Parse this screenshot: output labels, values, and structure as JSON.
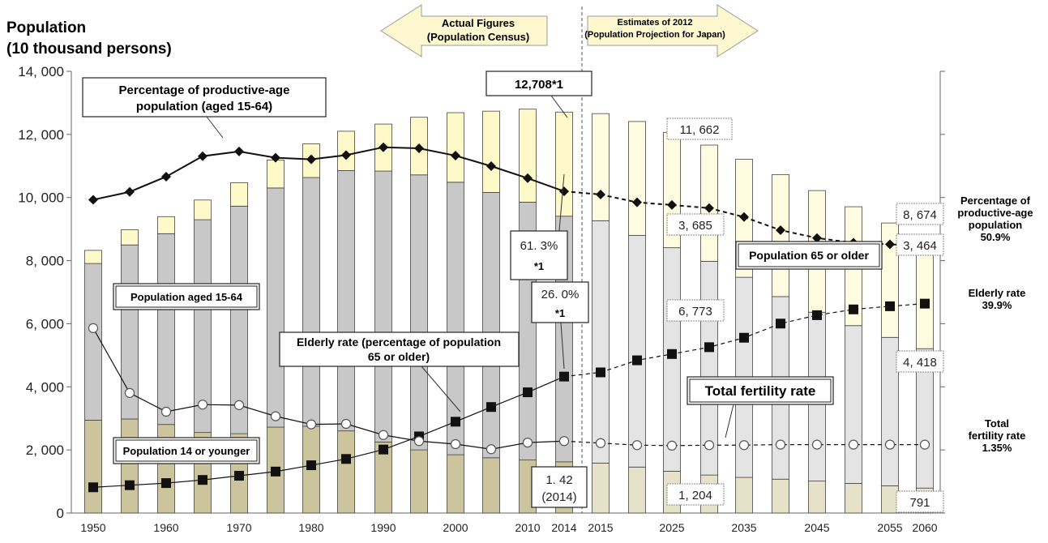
{
  "title_line1": "Population",
  "title_line2": "(10 thousand persons)",
  "chart_data": {
    "type": "bar",
    "stacked": true,
    "categories": [
      "1950",
      "1955",
      "1960",
      "1965",
      "1970",
      "1975",
      "1980",
      "1985",
      "1990",
      "1995",
      "2000",
      "2005",
      "2010",
      "2014",
      "2015",
      "2020",
      "2025",
      "2030",
      "2035",
      "2040",
      "2045",
      "2050",
      "2055",
      "2060"
    ],
    "x_tick_labels": [
      "1950",
      "",
      "1960",
      "",
      "1970",
      "",
      "1980",
      "",
      "1990",
      "",
      "2000",
      "",
      "2010",
      "2014",
      "2015",
      "",
      "2025",
      "",
      "2035",
      "",
      "2045",
      "",
      "2055",
      "2060"
    ],
    "y_tick_labels": [
      "0",
      "2, 000",
      "4, 000",
      "6, 000",
      "8, 000",
      "10, 000",
      "12, 000",
      "14, 000"
    ],
    "ylim": [
      0,
      14000
    ],
    "series": [
      {
        "name": "Population 14 or younger",
        "color_actual": "#ccc49c",
        "color_estimate": "#e6e2ca",
        "values": [
          2943,
          2980,
          2807,
          2553,
          2515,
          2722,
          2751,
          2603,
          2249,
          2001,
          1847,
          1752,
          1680,
          1623,
          1583,
          1457,
          1324,
          1204,
          1129,
          1073,
          1012,
          939,
          861,
          791
        ]
      },
      {
        "name": "Population aged 15-64",
        "color_actual": "#c8c8c8",
        "color_estimate": "#e4e4e4",
        "values": [
          4966,
          5517,
          6047,
          6744,
          7212,
          7581,
          7883,
          8251,
          8590,
          8717,
          8638,
          8409,
          8173,
          7785,
          7682,
          7341,
          7085,
          6773,
          6343,
          5787,
          5353,
          5001,
          4706,
          4418
        ]
      },
      {
        "name": "Population 65 or older",
        "color_actual": "#fff8c8",
        "color_estimate": "#fffbe0",
        "values": [
          416,
          479,
          540,
          624,
          739,
          887,
          1065,
          1247,
          1489,
          1826,
          2204,
          2576,
          2948,
          3300,
          3395,
          3612,
          3657,
          3685,
          3741,
          3868,
          3856,
          3768,
          3626,
          3464
        ]
      },
      {
        "name": "Percentage of productive-age population (aged 15-64)",
        "kind": "line",
        "unit": "%",
        "color": "#000000",
        "values": [
          59.7,
          61.2,
          64.1,
          68.0,
          68.9,
          67.7,
          67.4,
          68.2,
          69.7,
          69.5,
          68.1,
          66.1,
          63.8,
          61.3,
          60.7,
          59.2,
          58.7,
          58.1,
          56.4,
          53.9,
          52.4,
          51.5,
          51.2,
          50.9
        ]
      },
      {
        "name": "Elderly rate (percentage of population 65 or older)",
        "kind": "line",
        "unit": "%",
        "color": "#000000",
        "values": [
          4.9,
          5.3,
          5.7,
          6.3,
          7.1,
          7.9,
          9.1,
          10.3,
          12.1,
          14.6,
          17.4,
          20.2,
          23.0,
          26.0,
          26.8,
          29.1,
          30.3,
          31.6,
          33.4,
          36.1,
          37.7,
          38.8,
          39.4,
          39.9
        ]
      },
      {
        "name": "Total fertility rate",
        "kind": "line",
        "color": "#000000",
        "values": [
          3.65,
          2.37,
          2.0,
          2.14,
          2.13,
          1.91,
          1.75,
          1.76,
          1.54,
          1.42,
          1.36,
          1.26,
          1.39,
          1.42,
          1.38,
          1.34,
          1.33,
          1.34,
          1.34,
          1.35,
          1.35,
          1.35,
          1.35,
          1.35
        ]
      }
    ],
    "arrow_actual": {
      "line1": "Actual Figures",
      "line2": "(Population Census)"
    },
    "arrow_estimate": {
      "line1": "Estimates of 2012",
      "line2": "(Population Projection for Japan)"
    },
    "callouts": {
      "total_2014": "12,708*1",
      "prod_2014": "61. 3%",
      "prod_2014_note": "*1",
      "elder_2014": "26. 0%",
      "elder_2014_note": "*1",
      "tfr_2014": "1. 42",
      "tfr_2014_year": "(2014)",
      "pop_2030_total": "11, 662",
      "pop_2030_65": "3, 685",
      "pop_2030_1564": "6, 773",
      "pop_2030_14": "1, 204",
      "pop_2060_total": "8, 674",
      "pop_2060_65": "3, 464",
      "pop_2060_1564": "4, 418",
      "pop_2060_14": "791"
    },
    "labels": {
      "prod_line1": "Percentage of productive-age",
      "prod_line2": "population (aged 15-64)",
      "pop1564": "Population aged 15-64",
      "pop14": "Population 14 or younger",
      "pop65": "Population 65 or older",
      "elder_line1": "Elderly rate (percentage of population",
      "elder_line2": "65 or older)",
      "tfr": "Total fertility rate"
    }
  },
  "right_notes": {
    "prod": [
      "Percentage of",
      "productive-age",
      "population",
      "50.9%"
    ],
    "elder": [
      "Elderly rate",
      "39.9%"
    ],
    "tfr": [
      "Total",
      "fertility rate",
      "1.35%"
    ]
  }
}
